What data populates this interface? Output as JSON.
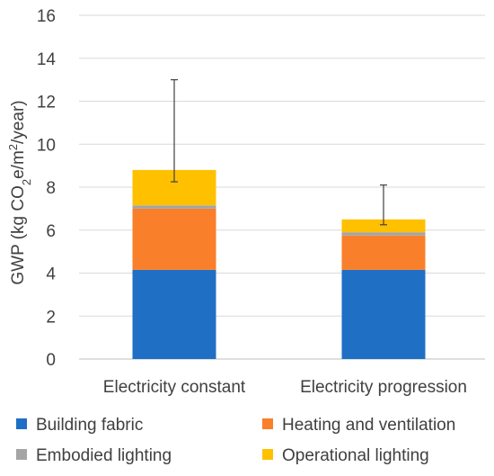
{
  "chart_data": {
    "type": "bar",
    "stacked": true,
    "categories": [
      "Electricity constant",
      "Electricity progression"
    ],
    "series": [
      {
        "name": "Building fabric",
        "color": "#1F6FC5",
        "values": [
          4.15,
          4.15
        ]
      },
      {
        "name": "Heating and ventilation",
        "color": "#F97F2B",
        "values": [
          2.85,
          1.6
        ]
      },
      {
        "name": "Embodied lighting",
        "color": "#A5A5A5",
        "values": [
          0.15,
          0.15
        ]
      },
      {
        "name": "Operational lighting",
        "color": "#FFC000",
        "values": [
          1.65,
          0.6
        ]
      }
    ],
    "totals": [
      8.8,
      6.5
    ],
    "error_bars": [
      {
        "low": 8.25,
        "high": 13.0
      },
      {
        "low": 6.25,
        "high": 8.1
      }
    ],
    "ylabel": "GWP (kg CO2e/m2/year)",
    "ylabel_parts": {
      "prefix": "GWP (kg CO",
      "sub": "2",
      "mid": "e/m",
      "sup": "2",
      "suffix": "/year)"
    },
    "ylim": [
      0,
      16
    ],
    "yticks": [
      0,
      2,
      4,
      6,
      8,
      10,
      12,
      14,
      16
    ],
    "grid": true,
    "legend_position": "bottom"
  }
}
